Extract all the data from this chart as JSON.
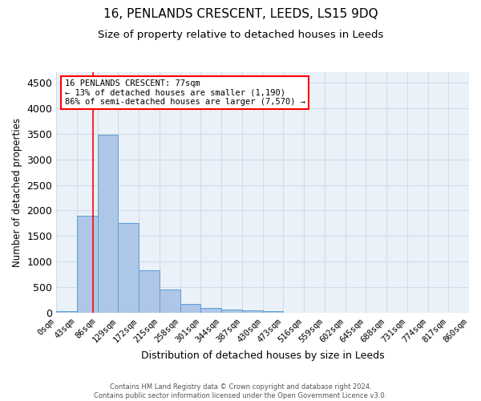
{
  "title": "16, PENLANDS CRESCENT, LEEDS, LS15 9DQ",
  "subtitle": "Size of property relative to detached houses in Leeds",
  "xlabel": "Distribution of detached houses by size in Leeds",
  "ylabel": "Number of detached properties",
  "bin_labels": [
    "0sqm",
    "43sqm",
    "86sqm",
    "129sqm",
    "172sqm",
    "215sqm",
    "258sqm",
    "301sqm",
    "344sqm",
    "387sqm",
    "430sqm",
    "473sqm",
    "516sqm",
    "559sqm",
    "602sqm",
    "645sqm",
    "688sqm",
    "731sqm",
    "774sqm",
    "817sqm",
    "860sqm"
  ],
  "bar_values": [
    35,
    1890,
    3480,
    1750,
    840,
    450,
    170,
    100,
    60,
    50,
    40,
    0,
    0,
    0,
    0,
    0,
    0,
    0,
    0,
    0
  ],
  "bar_color": "#aec6e8",
  "bar_edge_color": "#5a9fd4",
  "property_size": 77,
  "annotation_line1": "16 PENLANDS CRESCENT: 77sqm",
  "annotation_line2": "← 13% of detached houses are smaller (1,190)",
  "annotation_line3": "86% of semi-detached houses are larger (7,570) →",
  "annotation_box_color": "white",
  "annotation_box_edge_color": "red",
  "vline_color": "red",
  "ylim": [
    0,
    4700
  ],
  "yticks": [
    0,
    500,
    1000,
    1500,
    2000,
    2500,
    3000,
    3500,
    4000,
    4500
  ],
  "grid_color": "#d0dde8",
  "bg_color": "#eaf1f8",
  "title_fontsize": 11,
  "subtitle_fontsize": 9.5,
  "footer_text": "Contains HM Land Registry data © Crown copyright and database right 2024.\nContains public sector information licensed under the Open Government Licence v3.0.",
  "bin_width": 43,
  "n_bars": 20
}
